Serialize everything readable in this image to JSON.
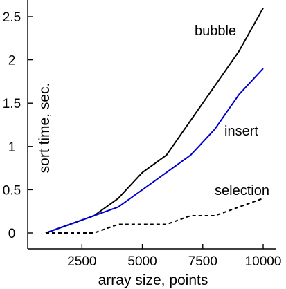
{
  "chart_data": {
    "type": "line",
    "title": "",
    "xlabel": "array size, points",
    "ylabel": "sort time, sec.",
    "xlim": [
      500,
      10500
    ],
    "ylim": [
      -0.15,
      2.7
    ],
    "xticks": [
      2500,
      5000,
      7500,
      10000
    ],
    "xtick_labels": [
      "2500",
      "5000",
      "7500",
      "10000"
    ],
    "yticks": [
      0,
      0.5,
      1,
      1.5,
      2,
      2.5
    ],
    "ytick_labels": [
      "0",
      "0.5",
      "1",
      "1.5",
      "2",
      "2.5"
    ],
    "grid": false,
    "legend": "labels placed next to each line",
    "x": [
      1000,
      2000,
      3000,
      4000,
      5000,
      6000,
      7000,
      8000,
      9000,
      10000
    ],
    "series": [
      {
        "name": "bubble",
        "color": "#000000",
        "dash": "solid",
        "values": [
          0,
          0.1,
          0.2,
          0.4,
          0.7,
          0.9,
          1.3,
          1.7,
          2.1,
          2.6
        ]
      },
      {
        "name": "insert",
        "color": "#0000cc",
        "dash": "solid",
        "values": [
          0,
          0.1,
          0.2,
          0.3,
          0.5,
          0.7,
          0.9,
          1.2,
          1.6,
          1.9
        ]
      },
      {
        "name": "selection",
        "color": "#000000",
        "dash": "dashed",
        "values": [
          0,
          0,
          0,
          0.1,
          0.1,
          0.1,
          0.2,
          0.2,
          0.3,
          0.4
        ]
      }
    ]
  }
}
